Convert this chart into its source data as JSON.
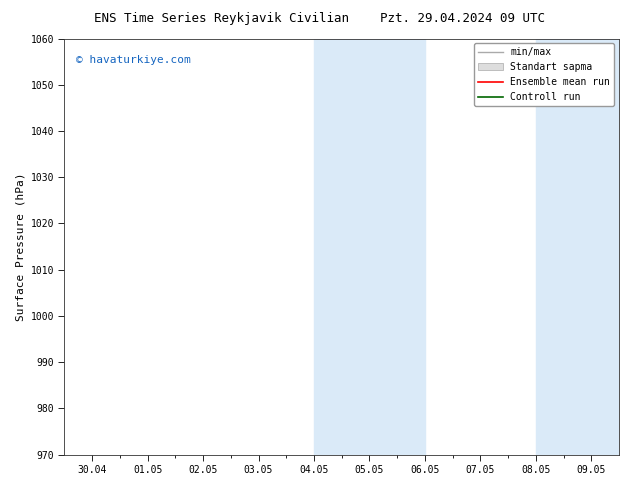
{
  "title_left": "ENS Time Series Reykjavik Civilian",
  "title_right": "Pzt. 29.04.2024 09 UTC",
  "ylabel": "Surface Pressure (hPa)",
  "watermark": "© havaturkiye.com",
  "watermark_color": "#1565C0",
  "ylim": [
    970,
    1060
  ],
  "yticks": [
    970,
    980,
    990,
    1000,
    1010,
    1020,
    1030,
    1040,
    1050,
    1060
  ],
  "xlim_start_days": 0,
  "xlim_end_days": 10,
  "xtick_labels": [
    "30.04",
    "01.05",
    "02.05",
    "03.05",
    "04.05",
    "05.05",
    "06.05",
    "07.05",
    "08.05",
    "09.05"
  ],
  "shaded_bands": [
    {
      "xstart_day": 4,
      "xend_day": 6
    },
    {
      "xstart_day": 8,
      "xend_day": 9.5
    }
  ],
  "shaded_color": "#daeaf8",
  "background_color": "#ffffff",
  "legend_items": [
    {
      "label": "min/max",
      "color": "#aaaaaa",
      "lw": 1.0
    },
    {
      "label": "Standart sapma",
      "color": "#cccccc",
      "lw": 6
    },
    {
      "label": "Ensemble mean run",
      "color": "#ff0000",
      "lw": 1.2
    },
    {
      "label": "Controll run",
      "color": "#006600",
      "lw": 1.2
    }
  ],
  "title_fontsize": 9,
  "tick_fontsize": 7,
  "ylabel_fontsize": 8,
  "watermark_fontsize": 8,
  "legend_fontsize": 7
}
